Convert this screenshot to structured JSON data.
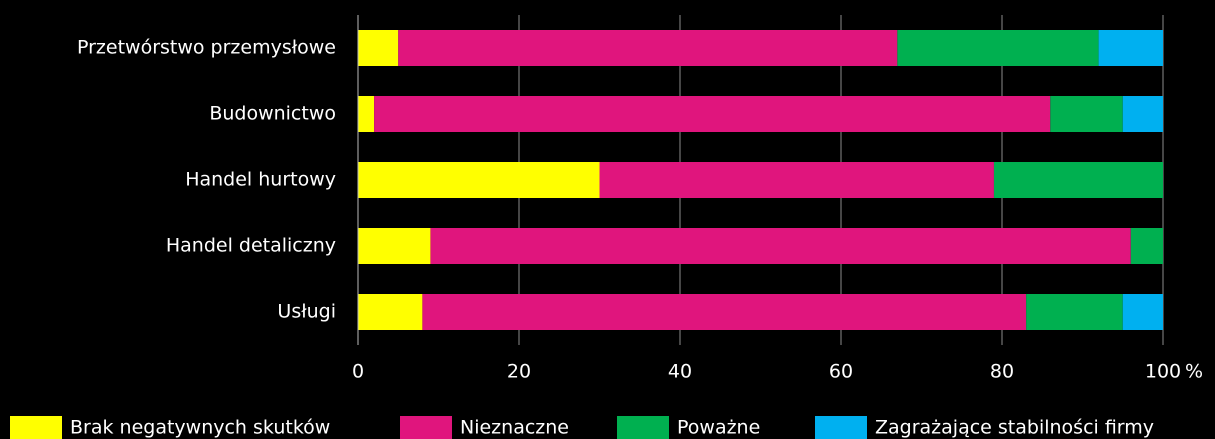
{
  "chart_data": {
    "type": "stacked_barh",
    "categories": [
      "Przetwórstwo przemysłowe",
      "Budownictwo",
      "Handel hurtowy",
      "Handel detaliczny",
      "Usługi"
    ],
    "series": [
      {
        "name": "Brak negatywnych skutków",
        "color": "#ffff00",
        "values": [
          5,
          2,
          30,
          9,
          8
        ]
      },
      {
        "name": "Nieznaczne",
        "color": "#e0157d",
        "values": [
          62,
          84,
          49,
          87,
          75
        ]
      },
      {
        "name": "Poważne",
        "color": "#00b050",
        "values": [
          25,
          9,
          21,
          4,
          12
        ]
      },
      {
        "name": "Zagrażające stabilności firmy",
        "color": "#00b0f0",
        "values": [
          8,
          5,
          0,
          0,
          5
        ]
      }
    ],
    "xlabel": "%",
    "xlim": [
      0,
      100
    ],
    "xticks": [
      0,
      20,
      40,
      60,
      80,
      100
    ],
    "grid": true,
    "legend": "bottom"
  }
}
